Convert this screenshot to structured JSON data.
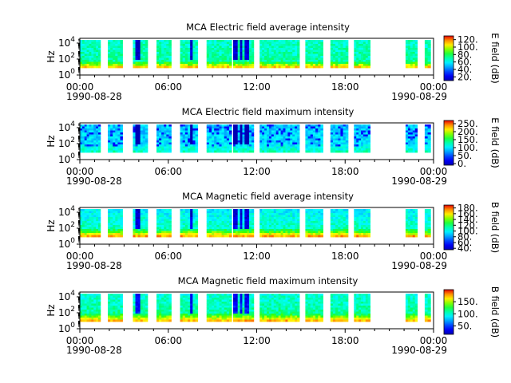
{
  "chart_data": [
    {
      "type": "heatmap",
      "title": "MCA  Electric field average intensity",
      "ylabel": "Hz",
      "y_scale": "log",
      "y_ticks": [
        "10^4",
        "10^2",
        "10^0"
      ],
      "x_ticks": [
        "00:00",
        "06:00",
        "12:00",
        "18:00",
        "00:00"
      ],
      "x_dates": [
        "1990-08-28",
        "1990-08-29"
      ],
      "x_range": [
        "1990-08-28 00:00",
        "1990-08-29 00:00"
      ],
      "colorbar": {
        "label": "E field (dB)",
        "ticks": [
          "120.",
          "100.",
          "80.",
          "60.",
          "40.",
          "20."
        ],
        "range": [
          10,
          130
        ]
      },
      "data_intervals_hours": [
        [
          0,
          1.4
        ],
        [
          1.9,
          2.9
        ],
        [
          3.6,
          4.6
        ],
        [
          5.2,
          6.2
        ],
        [
          6.8,
          8.0
        ],
        [
          8.6,
          10.3
        ],
        [
          10.4,
          11.8
        ],
        [
          12.2,
          14.9
        ],
        [
          15.3,
          16.5
        ],
        [
          17.0,
          18.2
        ],
        [
          18.6,
          19.7
        ],
        [
          22.1,
          22.9
        ],
        [
          23.4,
          23.8
        ]
      ],
      "dominant_color": "green-cyan"
    },
    {
      "type": "heatmap",
      "title": "MCA  Electric field maximum intensity",
      "ylabel": "Hz",
      "y_scale": "log",
      "y_ticks": [
        "10^4",
        "10^2",
        "10^0"
      ],
      "x_ticks": [
        "00:00",
        "06:00",
        "12:00",
        "18:00",
        "00:00"
      ],
      "x_dates": [
        "1990-08-28",
        "1990-08-29"
      ],
      "x_range": [
        "1990-08-28 00:00",
        "1990-08-29 00:00"
      ],
      "colorbar": {
        "label": "E field (dB)",
        "ticks": [
          "250.",
          "200.",
          "150.",
          "100.",
          "50.",
          "0."
        ],
        "range": [
          -10,
          270
        ]
      },
      "data_intervals_hours": [
        [
          0,
          1.4
        ],
        [
          1.9,
          2.9
        ],
        [
          3.6,
          4.6
        ],
        [
          5.2,
          6.2
        ],
        [
          6.8,
          8.0
        ],
        [
          8.6,
          10.3
        ],
        [
          10.4,
          11.8
        ],
        [
          12.2,
          14.9
        ],
        [
          15.3,
          16.5
        ],
        [
          17.0,
          18.2
        ],
        [
          18.6,
          19.7
        ],
        [
          22.1,
          22.9
        ],
        [
          23.4,
          23.8
        ]
      ],
      "dominant_color": "cyan-blue"
    },
    {
      "type": "heatmap",
      "title": "MCA  Magnetic field average intensity",
      "ylabel": "Hz",
      "y_scale": "log",
      "y_ticks": [
        "10^4",
        "10^2",
        "10^0"
      ],
      "x_ticks": [
        "00:00",
        "06:00",
        "12:00",
        "18:00",
        "00:00"
      ],
      "x_dates": [
        "1990-08-28",
        "1990-08-29"
      ],
      "x_range": [
        "1990-08-28 00:00",
        "1990-08-29 00:00"
      ],
      "colorbar": {
        "label": "B field (dB)",
        "ticks": [
          "180.",
          "160.",
          "140.",
          "120.",
          "100.",
          "80.",
          "60.",
          "40."
        ],
        "range": [
          35,
          190
        ]
      },
      "data_intervals_hours": [
        [
          0,
          1.4
        ],
        [
          1.9,
          2.9
        ],
        [
          3.6,
          4.6
        ],
        [
          5.2,
          6.2
        ],
        [
          6.8,
          8.0
        ],
        [
          8.6,
          10.3
        ],
        [
          10.4,
          11.8
        ],
        [
          12.2,
          14.9
        ],
        [
          15.3,
          16.5
        ],
        [
          17.0,
          18.2
        ],
        [
          18.6,
          19.7
        ],
        [
          22.1,
          22.9
        ],
        [
          23.4,
          23.8
        ]
      ],
      "dominant_color": "green"
    },
    {
      "type": "heatmap",
      "title": "MCA  Magnetic field maximum intensity",
      "ylabel": "Hz",
      "y_scale": "log",
      "y_ticks": [
        "10^4",
        "10^2",
        "10^0"
      ],
      "x_ticks": [
        "00:00",
        "06:00",
        "12:00",
        "18:00",
        "00:00"
      ],
      "x_dates": [
        "1990-08-28",
        "1990-08-29"
      ],
      "x_range": [
        "1990-08-28 00:00",
        "1990-08-29 00:00"
      ],
      "colorbar": {
        "label": "B field (dB)",
        "ticks": [
          "150.",
          "100.",
          "50."
        ],
        "range": [
          15,
          200
        ]
      },
      "data_intervals_hours": [
        [
          0,
          1.4
        ],
        [
          1.9,
          2.9
        ],
        [
          3.6,
          4.6
        ],
        [
          5.2,
          6.2
        ],
        [
          6.8,
          8.0
        ],
        [
          8.6,
          10.3
        ],
        [
          10.4,
          11.8
        ],
        [
          12.2,
          14.9
        ],
        [
          15.3,
          16.5
        ],
        [
          17.0,
          18.2
        ],
        [
          18.6,
          19.7
        ],
        [
          22.1,
          22.9
        ],
        [
          23.4,
          23.8
        ]
      ],
      "dominant_color": "green"
    }
  ]
}
